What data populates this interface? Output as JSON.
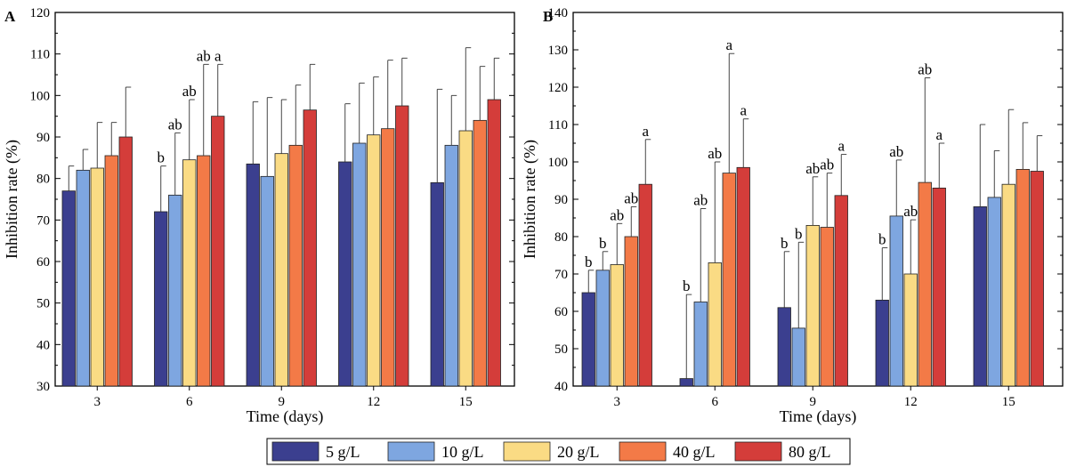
{
  "legend": {
    "items": [
      {
        "label": "5 g/L",
        "color": "#3b3f8f"
      },
      {
        "label": "10 g/L",
        "color": "#7ea6e0"
      },
      {
        "label": "20 g/L",
        "color": "#fadb84"
      },
      {
        "label": "40 g/L",
        "color": "#f37a47"
      },
      {
        "label": "80 g/L",
        "color": "#d43d3a"
      }
    ]
  },
  "chart_data": [
    {
      "type": "bar",
      "panel_label": "A",
      "title": "",
      "xlabel": "Time (days)",
      "ylabel": "Inhibition rate (%)",
      "ylim": [
        30,
        120
      ],
      "yticks": [
        "30",
        "40",
        "50",
        "60",
        "70",
        "80",
        "90",
        "100",
        "110",
        "120"
      ],
      "categories": [
        "3",
        "6",
        "9",
        "12",
        "15"
      ],
      "series": [
        {
          "name": "5 g/L",
          "values": [
            77,
            72,
            83.5,
            84,
            79
          ],
          "errors": [
            6,
            11,
            15,
            14,
            22.5
          ],
          "labels": [
            "",
            "b",
            "",
            "",
            ""
          ]
        },
        {
          "name": "10 g/L",
          "values": [
            82,
            76,
            80.5,
            88.5,
            88
          ],
          "errors": [
            5,
            15,
            19,
            14.5,
            12
          ],
          "labels": [
            "",
            "ab",
            "",
            "",
            ""
          ]
        },
        {
          "name": "20 g/L",
          "values": [
            82.5,
            84.5,
            86,
            90.5,
            91.5
          ],
          "errors": [
            11,
            14.5,
            13,
            14,
            20
          ],
          "labels": [
            "",
            "ab",
            "",
            "",
            ""
          ]
        },
        {
          "name": "40 g/L",
          "values": [
            85.5,
            85.5,
            88,
            92,
            94
          ],
          "errors": [
            8,
            22,
            14.5,
            16.5,
            13
          ],
          "labels": [
            "",
            "ab",
            "",
            "",
            ""
          ]
        },
        {
          "name": "80 g/L",
          "values": [
            90,
            95,
            96.5,
            97.5,
            99
          ],
          "errors": [
            12,
            12.5,
            11,
            11.5,
            10
          ],
          "labels": [
            "",
            "a",
            "",
            "",
            ""
          ]
        }
      ]
    },
    {
      "type": "bar",
      "panel_label": "B",
      "title": "",
      "xlabel": "Time (days)",
      "ylabel": "Inhibition rate (%)",
      "ylim": [
        40,
        140
      ],
      "yticks": [
        "40",
        "50",
        "60",
        "70",
        "80",
        "90",
        "100",
        "110",
        "120",
        "130",
        "140"
      ],
      "categories": [
        "3",
        "6",
        "9",
        "12",
        "15"
      ],
      "series": [
        {
          "name": "5 g/L",
          "values": [
            65,
            42,
            61,
            63,
            88
          ],
          "errors": [
            6,
            22.5,
            15,
            14,
            22
          ],
          "labels": [
            "b",
            "b",
            "b",
            "b",
            ""
          ]
        },
        {
          "name": "10 g/L",
          "values": [
            71,
            62.5,
            55.5,
            85.5,
            90.5
          ],
          "errors": [
            5,
            25,
            23,
            15,
            12.5
          ],
          "labels": [
            "b",
            "ab",
            "b",
            "ab",
            ""
          ]
        },
        {
          "name": "20 g/L",
          "values": [
            72.5,
            73,
            83,
            70,
            94
          ],
          "errors": [
            11,
            27,
            13,
            14.5,
            20
          ],
          "labels": [
            "ab",
            "ab",
            "ab",
            "ab",
            ""
          ]
        },
        {
          "name": "40 g/L",
          "values": [
            80,
            97,
            82.5,
            94.5,
            98
          ],
          "errors": [
            8,
            32,
            14.5,
            28,
            12.5
          ],
          "labels": [
            "ab",
            "a",
            "ab",
            "ab",
            ""
          ]
        },
        {
          "name": "80 g/L",
          "values": [
            94,
            98.5,
            91,
            93,
            97.5
          ],
          "errors": [
            12,
            13,
            11,
            12,
            9.5
          ],
          "labels": [
            "a",
            "a",
            "a",
            "a",
            ""
          ]
        }
      ]
    }
  ]
}
